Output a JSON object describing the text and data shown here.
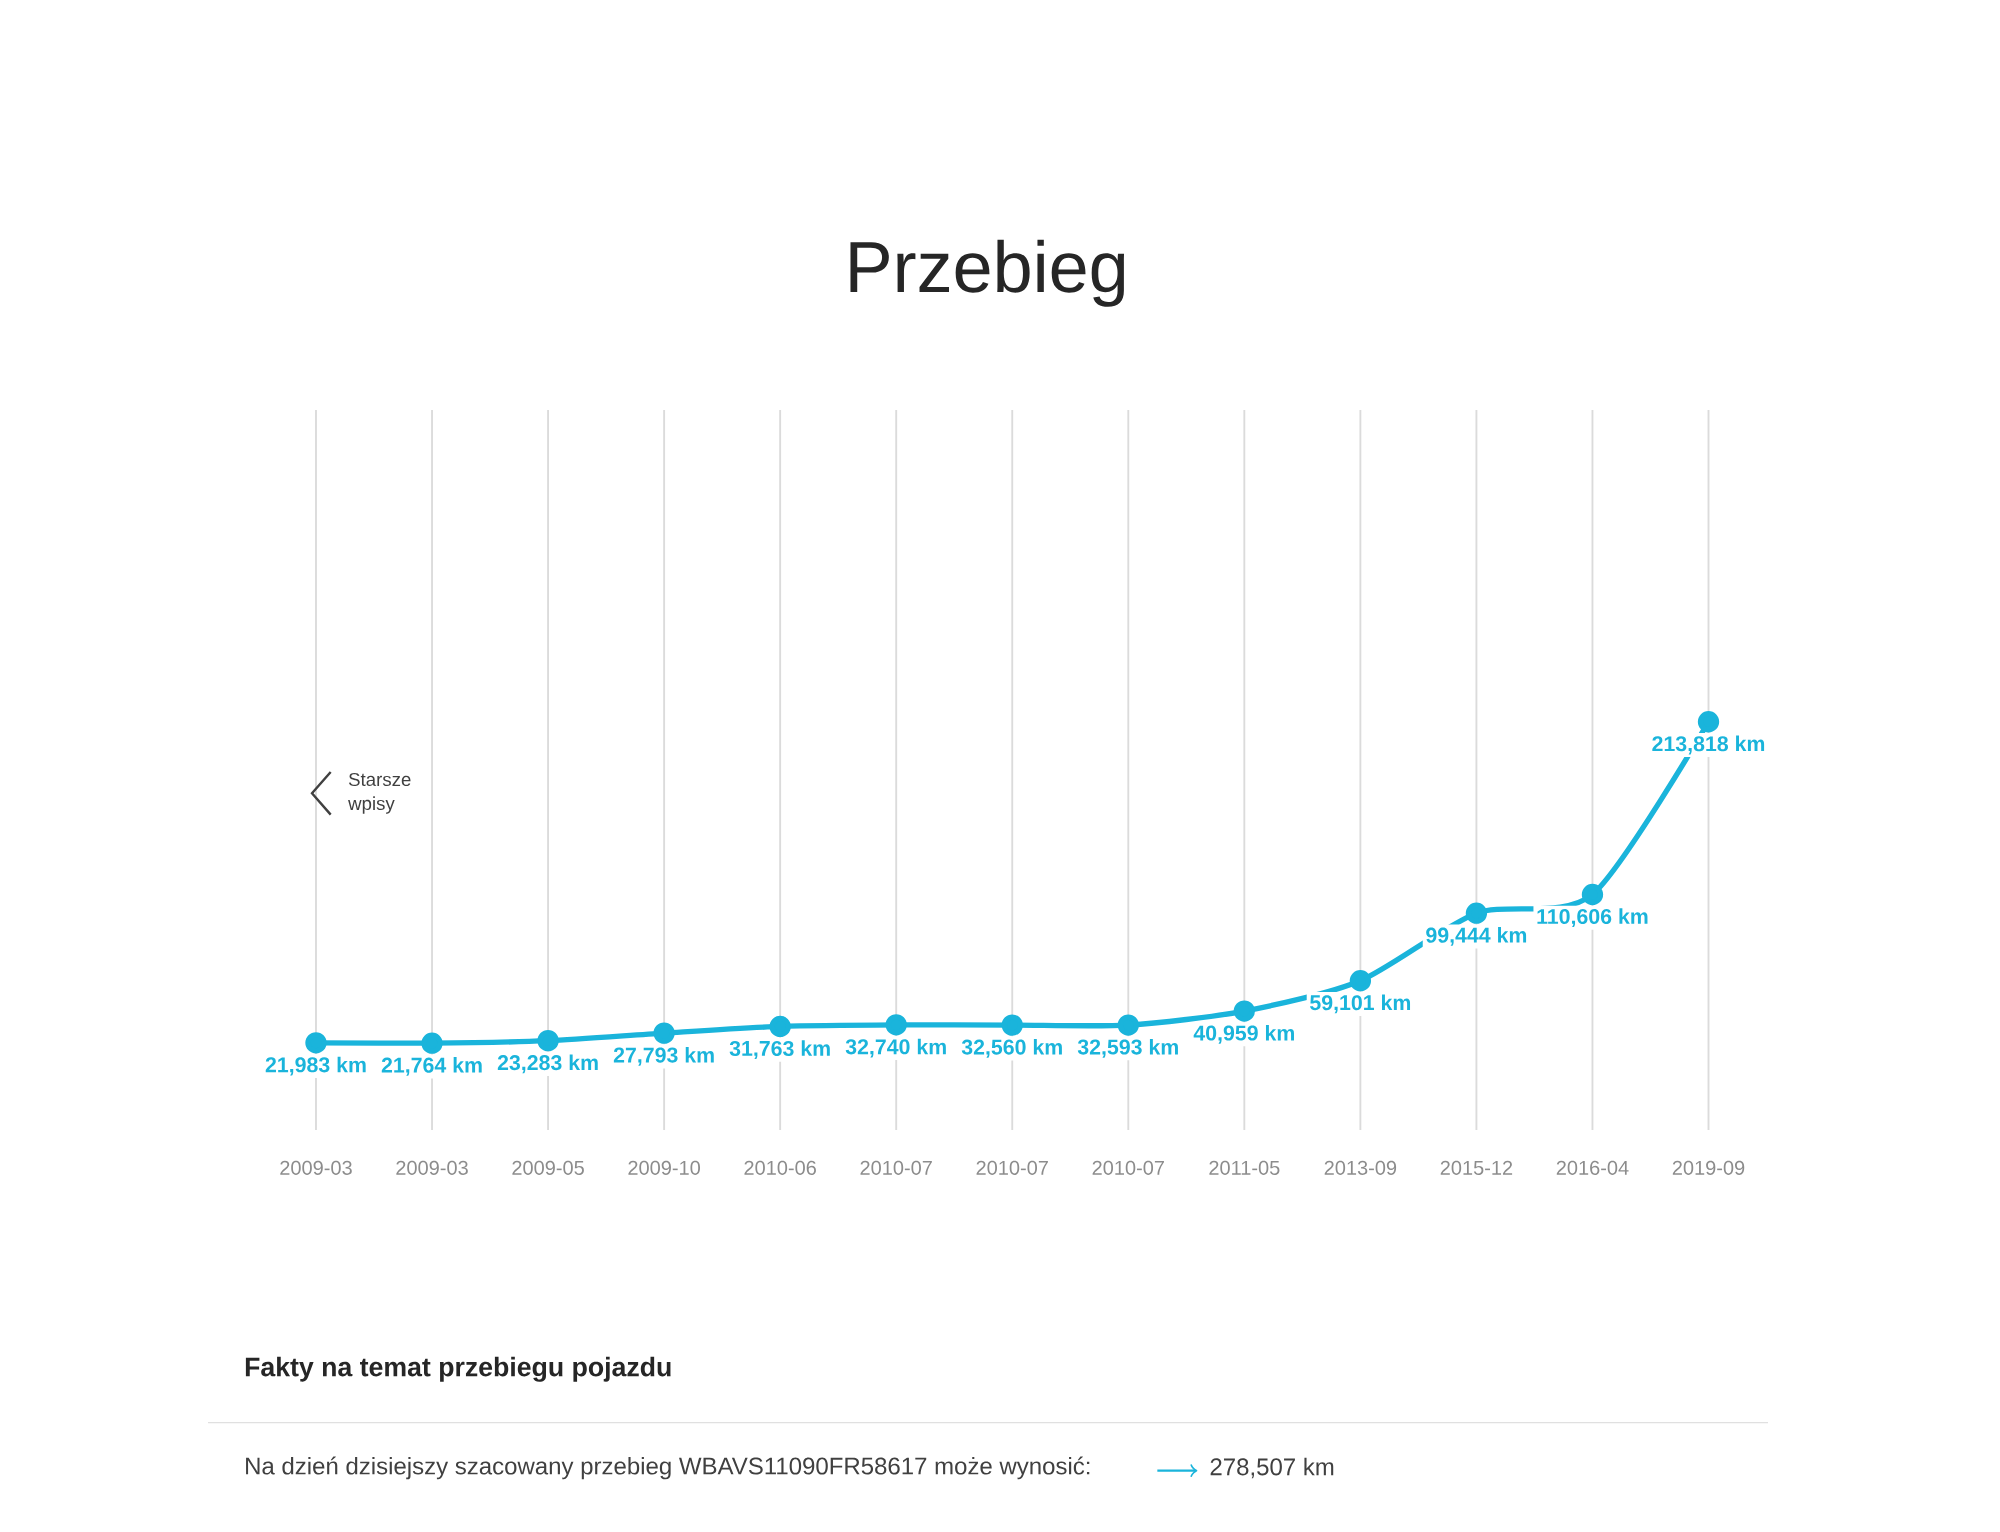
{
  "chart_data": {
    "type": "line",
    "title": "Przebieg",
    "categories": [
      "2009-03",
      "2009-03",
      "2009-05",
      "2009-10",
      "2010-06",
      "2010-07",
      "2010-07",
      "2010-07",
      "2011-05",
      "2013-09",
      "2015-12",
      "2016-04",
      "2019-09"
    ],
    "values": [
      21983,
      21764,
      23283,
      27793,
      31763,
      32740,
      32560,
      32593,
      40959,
      59101,
      99444,
      110606,
      213818
    ],
    "value_labels": [
      "21,983 km",
      "21,764 km",
      "23,283 km",
      "27,793 km",
      "31,763 km",
      "32,740 km",
      "32,560 km",
      "32,593 km",
      "40,959 km",
      "59,101 km",
      "99,444 km",
      "110,606 km",
      "213,818 km"
    ],
    "color": "#1ab4db",
    "marker": "circle",
    "line_style": "solid",
    "grid": "x",
    "tick_labels": "x",
    "annotations": [
      "Starsze wpisy",
      "Fakty na temat przebiegu pojazdu",
      "Na dzień dzisiejszy szacowany przebieg WBAVS11090FR58617 może wynosić:",
      "278,507 km"
    ]
  }
}
